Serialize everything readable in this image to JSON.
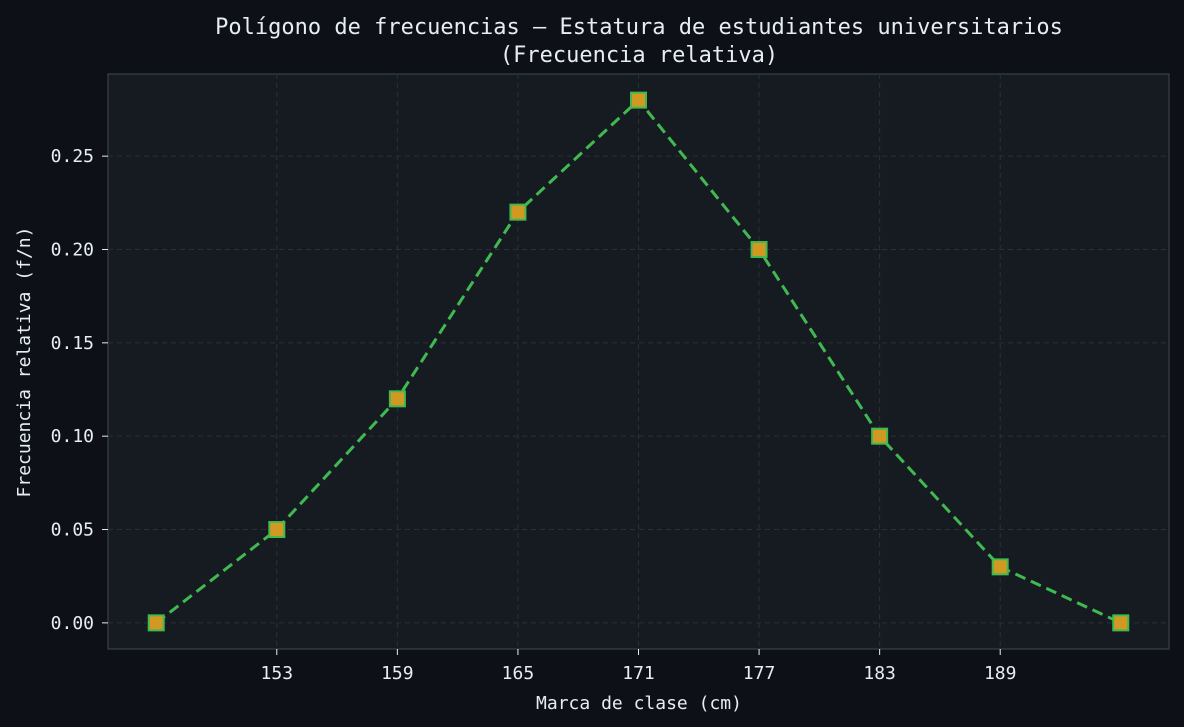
{
  "chart_data": {
    "type": "line",
    "title_line1": "Polígono de frecuencias — Estatura de estudiantes universitarios",
    "title_line2": "(Frecuencia relativa)",
    "xlabel": "Marca de clase (cm)",
    "ylabel": "Frecuencia relativa (f/n)",
    "x": [
      147,
      153,
      159,
      165,
      171,
      177,
      183,
      189,
      195
    ],
    "y": [
      0.0,
      0.05,
      0.12,
      0.22,
      0.28,
      0.2,
      0.1,
      0.03,
      0.0
    ],
    "xticks": [
      153,
      159,
      165,
      171,
      177,
      183,
      189
    ],
    "yticks": [
      "0.00",
      "0.05",
      "0.10",
      "0.15",
      "0.20",
      "0.25"
    ],
    "xlim": [
      144.6,
      197.4
    ],
    "ylim": [
      -0.014,
      0.294
    ],
    "grid": true,
    "line_style": "dashed",
    "marker": "square",
    "colors": {
      "background": "#0d1117",
      "plot_background": "#161b22",
      "line": "#3fb950",
      "marker_fill": "#d29922",
      "marker_edge": "#3fb950",
      "grid": "#2a3039",
      "axes_edge": "#3a4049",
      "text": "#e6edf3"
    }
  }
}
